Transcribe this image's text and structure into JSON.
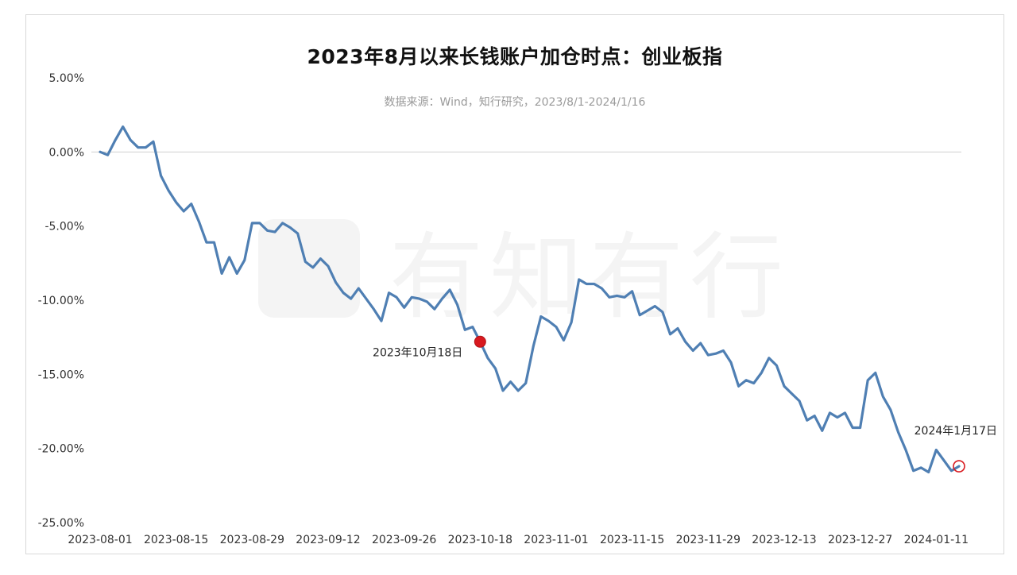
{
  "chart_data": {
    "type": "line",
    "title": "2023年8月以来长钱账户加仓时点：创业板指",
    "subtitle": "数据来源：Wind，知行研究，2023/8/1-2024/1/16",
    "watermark": "有知有行",
    "xlabel": "",
    "ylabel": "",
    "ylim": [
      -25,
      5
    ],
    "y_ticks": [
      "5.00%",
      "0.00%",
      "-5.00%",
      "-10.00%",
      "-15.00%",
      "-20.00%",
      "-25.00%"
    ],
    "x_tick_labels": [
      "2023-08-01",
      "2023-08-15",
      "2023-08-29",
      "2023-09-12",
      "2023-09-26",
      "2023-10-18",
      "2023-11-01",
      "2023-11-15",
      "2023-11-29",
      "2023-12-13",
      "2023-12-27",
      "2024-01-11"
    ],
    "x_tick_index": [
      0,
      10,
      20,
      30,
      40,
      50,
      60,
      70,
      80,
      90,
      100,
      110
    ],
    "grid": "zero-line only",
    "colors": {
      "line": "#4f7fb3",
      "marker_fill": "#d8191f",
      "marker_stroke": "#b01418"
    },
    "series": [
      {
        "values": [
          0.0,
          -0.2,
          0.8,
          1.7,
          0.8,
          0.3,
          0.3,
          0.7,
          -1.6,
          -2.6,
          -3.4,
          -4.0,
          -3.5,
          -4.7,
          -6.1,
          -6.1,
          -8.2,
          -7.1,
          -8.2,
          -7.3,
          -4.8,
          -4.8,
          -5.3,
          -5.4,
          -4.8,
          -5.1,
          -5.5,
          -7.4,
          -7.8,
          -7.2,
          -7.7,
          -8.8,
          -9.5,
          -9.9,
          -9.2,
          -9.9,
          -10.6,
          -11.4,
          -9.5,
          -9.8,
          -10.5,
          -9.8,
          -9.9,
          -10.1,
          -10.6,
          -9.9,
          -9.3,
          -10.3,
          -12.0,
          -11.8,
          -12.8,
          -13.9,
          -14.6,
          -16.1,
          -15.5,
          -16.1,
          -15.6,
          -13.1,
          -11.1,
          -11.4,
          -11.8,
          -12.7,
          -11.5,
          -8.6,
          -8.9,
          -8.9,
          -9.2,
          -9.8,
          -9.7,
          -9.8,
          -9.4,
          -11.0,
          -10.7,
          -10.4,
          -10.8,
          -12.3,
          -11.9,
          -12.8,
          -13.4,
          -12.9,
          -13.7,
          -13.6,
          -13.4,
          -14.2,
          -15.8,
          -15.4,
          -15.6,
          -14.9,
          -13.9,
          -14.4,
          -15.8,
          -16.3,
          -16.8,
          -18.1,
          -17.8,
          -18.8,
          -17.6,
          -17.9,
          -17.6,
          -18.6,
          -18.6,
          -15.4,
          -14.9,
          -16.5,
          -17.4,
          -18.9,
          -20.1,
          -21.5,
          -21.3,
          -21.6,
          -20.1,
          -20.8,
          -21.5,
          -21.2
        ]
      }
    ],
    "annotations": [
      {
        "label": "2023年10月18日",
        "index": 50,
        "value": -12.8,
        "style": "filled"
      },
      {
        "label": "2024年1月17日",
        "index": 113,
        "value": -21.2,
        "style": "ring"
      }
    ]
  }
}
